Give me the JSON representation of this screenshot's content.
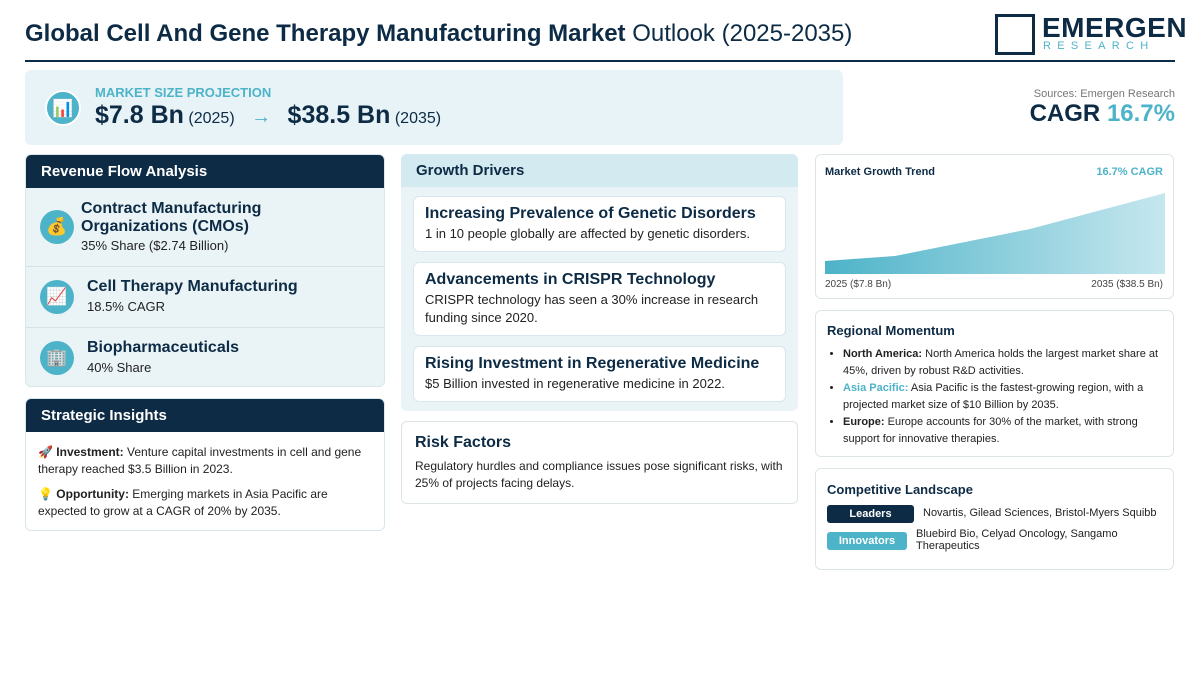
{
  "header": {
    "title_bold": "Global Cell And Gene Therapy Manufacturing Market",
    "title_rest": "Outlook (2025-2035)",
    "logo": {
      "name": "EMERGEN",
      "tagline": "RESEARCH"
    }
  },
  "projection": {
    "icon": "📊",
    "label": "MARKET SIZE PROJECTION",
    "start_value": "$7.8 Bn",
    "start_year": "(2025)",
    "arrow": "→",
    "end_value": "$38.5 Bn",
    "end_year": "(2035)"
  },
  "source": "Sources: Emergen Research",
  "cagr": {
    "label": "CAGR",
    "value": "16.7%"
  },
  "revenue_flow": {
    "title": "Revenue Flow Analysis",
    "items": [
      {
        "icon": "💰",
        "name": "Contract Manufacturing Organizations (CMOs)",
        "detail": "35% Share ($2.74 Billion)"
      },
      {
        "icon": "📈",
        "name": "Cell Therapy Manufacturing",
        "detail": "18.5% CAGR"
      },
      {
        "icon": "🏢",
        "name": "Biopharmaceuticals",
        "detail": "40% Share"
      }
    ]
  },
  "strategic_insights": {
    "title": "Strategic Insights",
    "items": [
      {
        "icon": "🚀",
        "label": "Investment:",
        "text": "Venture capital investments in cell and gene therapy reached $3.5 Billion in 2023."
      },
      {
        "icon": "💡",
        "label": "Opportunity:",
        "text": "Emerging markets in Asia Pacific are expected to grow at a CAGR of 20% by 2035."
      }
    ]
  },
  "growth_drivers": {
    "title": "Growth Drivers",
    "items": [
      {
        "title": "Increasing Prevalence of Genetic Disorders",
        "text": "1 in 10 people globally are affected by genetic disorders."
      },
      {
        "title": "Advancements in CRISPR Technology",
        "text": "CRISPR technology has seen a 30% increase in research funding since 2020."
      },
      {
        "title": "Rising Investment in Regenerative Medicine",
        "text": "$5 Billion invested in regenerative medicine in 2022."
      }
    ]
  },
  "risk_factors": {
    "title": "Risk Factors",
    "text": "Regulatory hurdles and compliance issues pose significant risks, with 25% of projects facing delays."
  },
  "trend": {
    "title": "Market Growth Trend",
    "cagr": "16.7% CAGR",
    "start_label": "2025 ($7.8 Bn)",
    "end_label": "2035 ($38.5 Bn)"
  },
  "regional": {
    "title": "Regional Momentum",
    "items": [
      {
        "region": "North America:",
        "text": "North America holds the largest market share at 45%, driven by robust R&D activities."
      },
      {
        "region": "Asia Pacific:",
        "text": "Asia Pacific is the fastest-growing region, with a projected market size of $10 Billion by 2035."
      },
      {
        "region": "Europe:",
        "text": "Europe accounts for 30% of the market, with strong support for innovative therapies."
      }
    ]
  },
  "competitive": {
    "title": "Competitive Landscape",
    "groups": [
      {
        "label": "Leaders",
        "names": "Novartis, Gilead Sciences, Bristol-Myers Squibb"
      },
      {
        "label": "Innovators",
        "names": "Bluebird Bio, Celyad Oncology, Sangamo Therapeutics"
      }
    ]
  }
}
